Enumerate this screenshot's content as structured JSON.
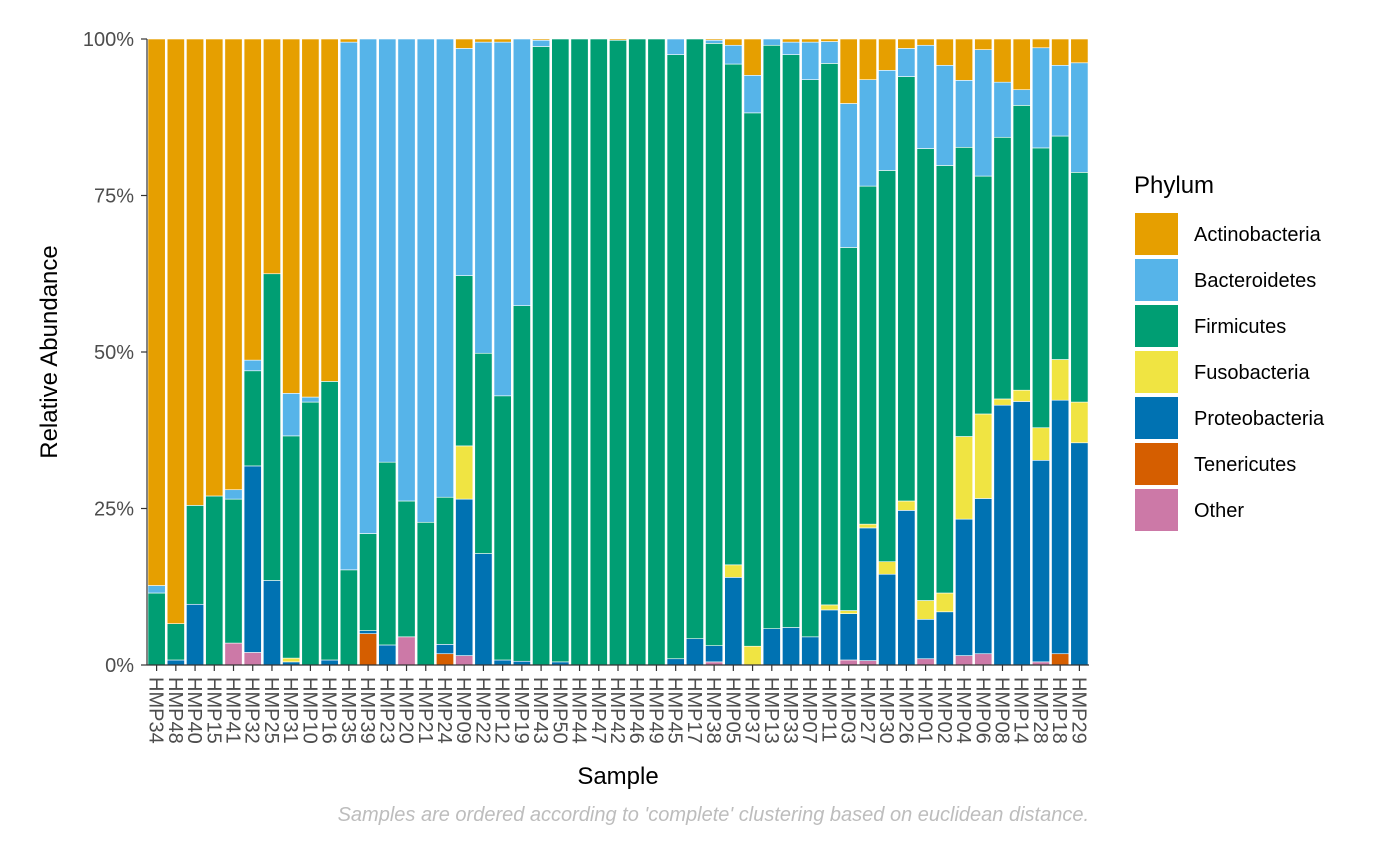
{
  "chart_data": {
    "type": "bar",
    "stacked": true,
    "xlabel": "Sample",
    "ylabel": "Relative Abundance",
    "caption": "Samples are ordered according to 'complete' clustering based on euclidean distance.",
    "ylim": [
      0,
      1
    ],
    "y_ticks": [
      "0%",
      "25%",
      "50%",
      "75%",
      "100%"
    ],
    "grid": false,
    "legend": {
      "title": "Phylum",
      "position": "right"
    },
    "categories": [
      "HMP34",
      "HMP48",
      "HMP40",
      "HMP15",
      "HMP41",
      "HMP32",
      "HMP25",
      "HMP31",
      "HMP10",
      "HMP16",
      "HMP35",
      "HMP39",
      "HMP23",
      "HMP20",
      "HMP21",
      "HMP24",
      "HMP09",
      "HMP22",
      "HMP12",
      "HMP19",
      "HMP43",
      "HMP50",
      "HMP44",
      "HMP47",
      "HMP42",
      "HMP46",
      "HMP49",
      "HMP45",
      "HMP17",
      "HMP38",
      "HMP05",
      "HMP37",
      "HMP13",
      "HMP33",
      "HMP07",
      "HMP11",
      "HMP03",
      "HMP27",
      "HMP30",
      "HMP26",
      "HMP01",
      "HMP02",
      "HMP04",
      "HMP06",
      "HMP08",
      "HMP14",
      "HMP28",
      "HMP18",
      "HMP29"
    ],
    "series": [
      {
        "name": "Other",
        "color": "#CC79A7",
        "values": [
          0,
          0,
          0,
          0,
          0.035,
          0.02,
          0,
          0,
          0,
          0,
          0,
          0,
          0,
          0.045,
          0,
          0,
          0.015,
          0,
          0,
          0,
          0,
          0,
          0,
          0,
          0,
          0,
          0,
          0,
          0,
          0.005,
          0,
          0,
          0,
          0,
          0,
          0,
          0.008,
          0.007,
          0,
          0,
          0.01,
          0,
          0.015,
          0.018,
          0,
          0,
          0.005,
          0,
          0
        ]
      },
      {
        "name": "Tenericutes",
        "color": "#D55E00",
        "values": [
          0,
          0,
          0,
          0,
          0,
          0,
          0,
          0,
          0,
          0,
          0,
          0.05,
          0,
          0,
          0,
          0.018,
          0,
          0,
          0,
          0,
          0,
          0,
          0,
          0,
          0,
          0,
          0,
          0,
          0,
          0,
          0,
          0,
          0,
          0,
          0,
          0,
          0,
          0,
          0,
          0,
          0,
          0,
          0,
          0,
          0,
          0,
          0,
          0.018,
          0
        ]
      },
      {
        "name": "Proteobacteria",
        "color": "#0072B2",
        "values": [
          0,
          0.008,
          0.097,
          0,
          0,
          0.298,
          0.135,
          0.005,
          0,
          0.008,
          0,
          0.005,
          0.032,
          0,
          0,
          0.015,
          0.25,
          0.178,
          0.008,
          0.006,
          0,
          0.005,
          0,
          0,
          0,
          0,
          0,
          0.01,
          0.042,
          0.026,
          0.14,
          0,
          0.058,
          0.06,
          0.045,
          0.088,
          0.074,
          0.212,
          0.145,
          0.247,
          0.063,
          0.085,
          0.218,
          0.248,
          0.415,
          0.421,
          0.322,
          0.405,
          0.355
        ]
      },
      {
        "name": "Fusobacteria",
        "color": "#F0E442",
        "values": [
          0,
          0,
          0,
          0,
          0,
          0,
          0,
          0.006,
          0,
          0,
          0,
          0,
          0,
          0,
          0,
          0,
          0.085,
          0,
          0,
          0,
          0,
          0,
          0,
          0,
          0,
          0,
          0,
          0,
          0,
          0,
          0.02,
          0.03,
          0,
          0,
          0,
          0.008,
          0.005,
          0.006,
          0.02,
          0.015,
          0.03,
          0.03,
          0.132,
          0.135,
          0.01,
          0.018,
          0.052,
          0.065,
          0.065
        ]
      },
      {
        "name": "Firmicutes",
        "color": "#009E73",
        "values": [
          0.115,
          0.058,
          0.158,
          0.27,
          0.23,
          0.152,
          0.49,
          0.355,
          0.42,
          0.445,
          0.152,
          0.155,
          0.292,
          0.217,
          0.228,
          0.235,
          0.272,
          0.32,
          0.422,
          0.568,
          0.988,
          0.995,
          1.0,
          1.0,
          0.998,
          1.0,
          1.0,
          0.965,
          0.958,
          0.967,
          0.8,
          0.852,
          0.932,
          0.915,
          0.89,
          0.865,
          0.58,
          0.54,
          0.625,
          0.678,
          0.722,
          0.683,
          0.462,
          0.38,
          0.418,
          0.455,
          0.447,
          0.357,
          0.367
        ]
      },
      {
        "name": "Bacteroidetes",
        "color": "#56B4E9",
        "values": [
          0.012,
          0,
          0,
          0,
          0.015,
          0.017,
          0,
          0.068,
          0.008,
          0,
          0.843,
          0.79,
          0.676,
          0.738,
          0.772,
          0.732,
          0.363,
          0.497,
          0.565,
          0.426,
          0.01,
          0,
          0,
          0,
          0,
          0,
          0,
          0.025,
          0,
          0.005,
          0.03,
          0.06,
          0.01,
          0.02,
          0.06,
          0.035,
          0.23,
          0.17,
          0.16,
          0.045,
          0.165,
          0.16,
          0.107,
          0.202,
          0.088,
          0.025,
          0.16,
          0.113,
          0.175
        ]
      },
      {
        "name": "Actinobacteria",
        "color": "#E69F00",
        "values": [
          0.873,
          0.934,
          0.745,
          0.73,
          0.72,
          0.513,
          0.375,
          0.566,
          0.572,
          0.547,
          0.005,
          0,
          0,
          0,
          0,
          0,
          0.015,
          0.005,
          0.005,
          0,
          0.002,
          0,
          0,
          0,
          0.002,
          0,
          0,
          0,
          0,
          0.002,
          0.01,
          0.058,
          0,
          0.005,
          0.005,
          0.004,
          0.103,
          0.065,
          0.05,
          0.015,
          0.01,
          0.042,
          0.066,
          0.017,
          0.069,
          0.081,
          0.014,
          0.042,
          0.038
        ]
      }
    ]
  }
}
